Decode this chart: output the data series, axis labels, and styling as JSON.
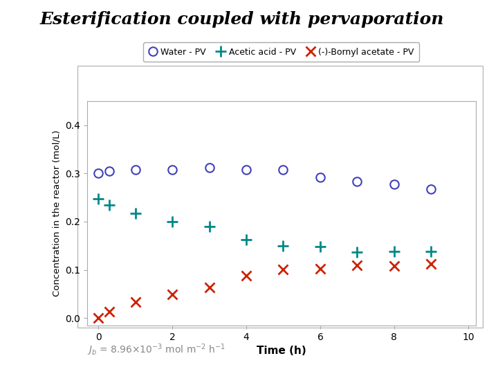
{
  "title": "Esterification coupled with pervaporation",
  "xlabel": "Time (h)",
  "ylabel": "Concentration in the reactor (mol/L)",
  "xlim": [
    -0.3,
    10.2
  ],
  "ylim": [
    -0.015,
    0.45
  ],
  "xticks": [
    0,
    2,
    4,
    6,
    8,
    10
  ],
  "yticks": [
    0.0,
    0.1,
    0.2,
    0.3,
    0.4
  ],
  "water_x": [
    0,
    0.3,
    1,
    2,
    3,
    4,
    5,
    6,
    7,
    8,
    9
  ],
  "water_y": [
    0.3,
    0.305,
    0.307,
    0.307,
    0.312,
    0.307,
    0.307,
    0.292,
    0.283,
    0.277,
    0.267
  ],
  "acetic_x": [
    0,
    0.3,
    1,
    2,
    3,
    4,
    5,
    6,
    7,
    8,
    9
  ],
  "acetic_y": [
    0.248,
    0.235,
    0.217,
    0.2,
    0.19,
    0.162,
    0.15,
    0.148,
    0.137,
    0.138,
    0.138
  ],
  "bornyl_x": [
    0,
    0.3,
    1,
    2,
    3,
    4,
    5,
    6,
    7,
    8,
    9
  ],
  "bornyl_y": [
    0.0,
    0.014,
    0.033,
    0.05,
    0.063,
    0.088,
    0.101,
    0.102,
    0.11,
    0.108,
    0.113
  ],
  "water_color": "#4040bb",
  "acetic_color": "#008888",
  "bornyl_color": "#cc2200",
  "annotation": "$\\mathit{J_b}$ = 8.96×10$^{-3}$ mol m$^{-2}$ h$^{-1}$",
  "legend_labels": [
    "Water - PV",
    "Acetic acid - PV",
    "(-)-Bornyl acetate - PV"
  ],
  "panel_bg": "#ffffff",
  "fig_bg": "#ffffff"
}
